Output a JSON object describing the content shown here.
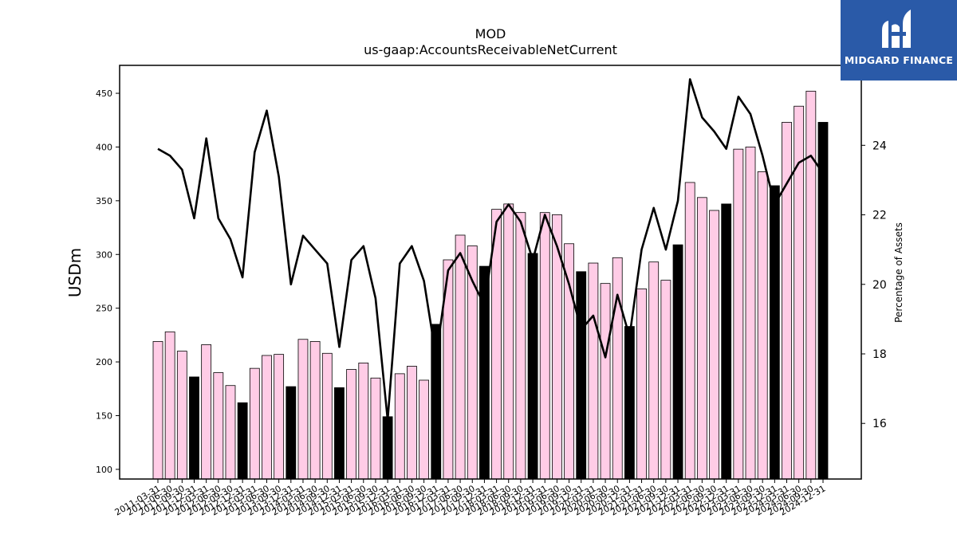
{
  "brand": {
    "name": "MIDGARD FINANCE",
    "logo_icon": "midgard-logo-icon",
    "bg_color": "#2a5aa8"
  },
  "chart_data": {
    "type": "bar",
    "title": "MOD",
    "subtitle": "us-gaap:AccountsReceivableNetCurrent",
    "ylabel": "USDm",
    "y2label": "Percentage of Assets",
    "ylim": [
      91,
      476
    ],
    "y2lim": [
      14.4,
      26.3
    ],
    "yticks": [
      100,
      150,
      200,
      250,
      300,
      350,
      400,
      450
    ],
    "y2ticks": [
      16,
      18,
      20,
      22,
      24
    ],
    "categories": [
      "2011-03-31",
      "2011-06-30",
      "2011-09-30",
      "2011-12-31",
      "2012-03-31",
      "2012-06-30",
      "2012-09-30",
      "2012-12-31",
      "2013-03-31",
      "2013-06-30",
      "2013-09-30",
      "2013-12-31",
      "2014-03-31",
      "2014-06-30",
      "2014-09-30",
      "2014-12-31",
      "2015-03-31",
      "2015-06-30",
      "2015-09-30",
      "2015-12-31",
      "2016-03-31",
      "2016-06-30",
      "2016-09-30",
      "2016-12-31",
      "2017-03-31",
      "2017-06-30",
      "2017-09-30",
      "2017-12-31",
      "2018-03-31",
      "2018-06-30",
      "2018-09-30",
      "2018-12-31",
      "2019-03-31",
      "2019-06-30",
      "2019-09-30",
      "2019-12-31",
      "2020-03-31",
      "2020-06-30",
      "2020-09-30",
      "2020-12-31",
      "2021-03-31",
      "2021-06-30",
      "2021-09-30",
      "2021-12-31",
      "2022-03-31",
      "2022-06-30",
      "2022-09-30",
      "2022-12-31",
      "2023-03-31",
      "2023-06-30",
      "2023-09-30",
      "2023-12-31",
      "2024-03-31",
      "2024-06-30",
      "2024-09-30",
      "2024-12-31"
    ],
    "xtick_labels": [
      "2011-03-31",
      "2011-06-30",
      "2011-09-30",
      "2011-12-31",
      "2012-03-31",
      "2012-06-30",
      "2012-09-30",
      "2012-12-31",
      "2013-03-31",
      "2013-06-30",
      "2013-09-30",
      "2013-12-31",
      "2014-03-31",
      "2014-06-30",
      "2014-09-30",
      "2014-12-31",
      "2015-03-31",
      "2015-06-30",
      "2015-09-30",
      "2015-12-31",
      "2016-03-31",
      "2016-06-30",
      "2016-09-30",
      "2016-12-31",
      "2017-03-31",
      "2017-06-30",
      "2017-09-30",
      "2017-12-31",
      "2018-03-31",
      "2018-06-30",
      "2018-09-30",
      "2018-12-31",
      "2019-03-31",
      "2019-06-30",
      "2019-09-30",
      "2019-12-31",
      "2020-03-31",
      "2020-06-30",
      "2020-09-30",
      "2020-12-31",
      "2021-03-31",
      "2021-06-30",
      "2021-09-30",
      "2021-12-31",
      "2022-03-31",
      "2022-06-30",
      "2022-09-30",
      "2022-12-31",
      "2023-03-31",
      "2023-06-30",
      "2023-09-30",
      "2023-12-31",
      "2024-03-31",
      "2024-06-30",
      "2024-09-30",
      "2024-12-31"
    ],
    "series": [
      {
        "type": "bar",
        "axis": "left",
        "values": [
          219,
          228,
          210,
          186,
          216,
          190,
          178,
          162,
          194,
          206,
          207,
          177,
          221,
          219,
          208,
          176,
          193,
          199,
          185,
          149,
          189,
          196,
          183,
          235,
          295,
          318,
          308,
          289,
          342,
          347,
          339,
          301,
          339,
          337,
          310,
          284,
          292,
          273,
          297,
          233,
          268,
          293,
          276,
          309,
          367,
          353,
          341,
          347,
          398,
          400,
          377,
          364,
          423,
          438,
          452,
          423
        ]
      },
      {
        "type": "line",
        "axis": "right",
        "values": [
          23.9,
          23.7,
          23.3,
          21.9,
          24.2,
          21.9,
          21.3,
          20.2,
          23.8,
          25.0,
          23.1,
          20.0,
          21.4,
          21.0,
          20.6,
          18.2,
          20.7,
          21.1,
          19.6,
          16.1,
          20.6,
          21.1,
          20.1,
          17.9,
          20.4,
          20.9,
          20.1,
          19.4,
          21.8,
          22.3,
          21.8,
          20.7,
          22.0,
          21.1,
          20.0,
          18.7,
          19.1,
          17.9,
          19.7,
          18.5,
          21.0,
          22.2,
          21.0,
          22.4,
          25.9,
          24.8,
          24.4,
          23.9,
          25.4,
          24.9,
          23.7,
          22.3,
          22.9,
          23.5,
          23.7,
          23.2
        ]
      }
    ],
    "bar_colors": {
      "default": "#ffcce6",
      "q4": "#000000",
      "edge": "#000000"
    },
    "line_color": "#000000",
    "grid": false
  }
}
